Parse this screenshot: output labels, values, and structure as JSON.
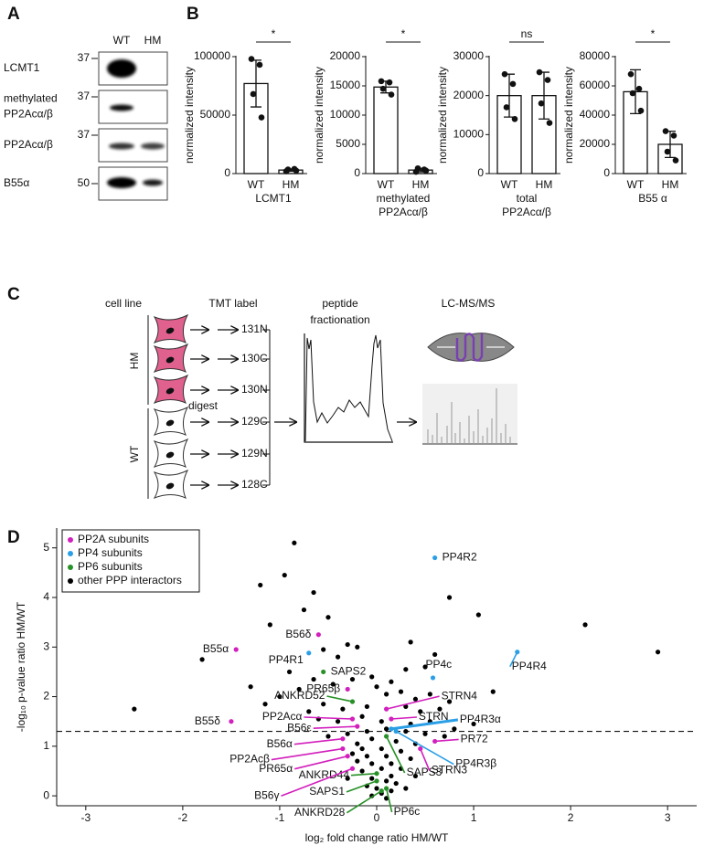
{
  "panel_labels": [
    "A",
    "B",
    "C",
    "D"
  ],
  "blot": {
    "columns": [
      "WT",
      "HM"
    ],
    "rows": [
      {
        "label": [
          "LCMT1"
        ],
        "marker": 37
      },
      {
        "label": [
          "methylated",
          "PP2Acα/β"
        ],
        "marker": 37
      },
      {
        "label": [
          "PP2Acα/β"
        ],
        "marker": 37
      },
      {
        "label": [
          "B55α"
        ],
        "marker": 50
      }
    ]
  },
  "chart_data": [
    {
      "type": "bar",
      "ylabel": "normalized intensity",
      "xlabel": [
        "LCMT1"
      ],
      "categories": [
        "WT",
        "HM"
      ],
      "values": [
        77000,
        3000
      ],
      "errors": [
        20000,
        1000
      ],
      "points": [
        [
          98000,
          93000,
          68000,
          48000
        ],
        [
          2000,
          4000,
          3500,
          2500
        ]
      ],
      "ylim": [
        0,
        100000
      ],
      "yticks": [
        0,
        50000,
        100000
      ],
      "significance": "*"
    },
    {
      "type": "bar",
      "ylabel": "normalized intensity",
      "xlabel": [
        "methylated",
        "PP2Acα/β"
      ],
      "categories": [
        "WT",
        "HM"
      ],
      "values": [
        14800,
        600
      ],
      "errors": [
        1000,
        300
      ],
      "points": [
        [
          15800,
          15600,
          14500,
          13500
        ],
        [
          300,
          700,
          900,
          500
        ]
      ],
      "ylim": [
        0,
        20000
      ],
      "yticks": [
        0,
        5000,
        10000,
        15000,
        20000
      ],
      "significance": "*"
    },
    {
      "type": "bar",
      "ylabel": "normalized intensity",
      "xlabel": [
        "total",
        "PP2Acα/β"
      ],
      "categories": [
        "WT",
        "HM"
      ],
      "values": [
        20000,
        20000
      ],
      "errors": [
        5500,
        6000
      ],
      "points": [
        [
          25500,
          23000,
          17000,
          14000
        ],
        [
          26000,
          24000,
          18000,
          13000
        ]
      ],
      "ylim": [
        0,
        30000
      ],
      "yticks": [
        0,
        10000,
        20000,
        30000
      ],
      "significance": "ns"
    },
    {
      "type": "bar",
      "ylabel": "normalized intensity",
      "xlabel": [
        "B55 α"
      ],
      "categories": [
        "WT",
        "HM"
      ],
      "values": [
        56000,
        20000
      ],
      "errors": [
        15000,
        9000
      ],
      "points": [
        [
          68000,
          58000,
          55000,
          43000
        ],
        [
          29000,
          26000,
          15000,
          9000
        ]
      ],
      "ylim": [
        0,
        80000
      ],
      "yticks": [
        0,
        20000,
        40000,
        60000,
        80000
      ],
      "significance": "*"
    },
    {
      "type": "scatter",
      "xlabel": "log₂ fold change ratio HM/WT",
      "ylabel": "-log₁₀ p-value ratio HM/WT",
      "xlim": [
        -3.3,
        3.3
      ],
      "ylim": [
        -0.2,
        5.4
      ],
      "xticks": [
        -3,
        -2,
        -1,
        0,
        1,
        2,
        3
      ],
      "yticks": [
        0,
        1,
        2,
        3,
        4,
        5
      ],
      "threshold": 1.3,
      "legend": "upper left",
      "series": [
        {
          "name": "PP2A subunits",
          "color": "#d21fbd",
          "labels": [
            "B55α",
            "B56δ",
            "PR65β",
            "B55δ",
            "PP2Acα",
            "B56ε",
            "B56α",
            "PP2Acβ",
            "PR65α",
            "B56γ",
            "STRN4",
            "STRN",
            "PR72",
            "STRN3"
          ],
          "x": [
            -1.45,
            -0.6,
            -0.3,
            -1.5,
            -0.25,
            -0.2,
            -0.35,
            -0.35,
            -0.3,
            -0.25,
            0.1,
            0.15,
            0.6,
            0.45
          ],
          "y": [
            2.95,
            3.25,
            2.15,
            1.5,
            1.55,
            1.4,
            1.15,
            0.95,
            0.8,
            0.55,
            1.75,
            1.55,
            1.1,
            0.95
          ]
        },
        {
          "name": "PP4 subunits",
          "color": "#2b9fe6",
          "labels": [
            "PP4R2",
            "PP4R1",
            "PP4R4",
            "PP4c",
            "PP4R3α",
            "PP4R3β"
          ],
          "x": [
            0.6,
            -0.7,
            1.45,
            0.58,
            0.15,
            0.2
          ],
          "y": [
            4.8,
            2.88,
            2.9,
            2.38,
            1.35,
            1.3
          ]
        },
        {
          "name": "PP6 subunits",
          "color": "#279127",
          "labels": [
            "SAPS2",
            "ANKRD52",
            "ANKRD44",
            "SAPS1",
            "ANKRD28",
            "PP6c",
            "SAPS3"
          ],
          "x": [
            -0.55,
            -0.25,
            0.0,
            0.0,
            0.05,
            0.1,
            0.1
          ],
          "y": [
            2.5,
            1.9,
            0.45,
            0.3,
            0.1,
            0.15,
            1.2
          ]
        },
        {
          "name": "other PPP interactors",
          "color": "#000000",
          "x": [
            -0.85,
            -0.95,
            -1.2,
            -0.65,
            -0.75,
            -1.1,
            -0.5,
            -1.8,
            -2.5,
            2.15,
            2.9,
            1.05,
            0.75,
            0.35,
            -0.3,
            -0.2,
            -0.55,
            -0.4,
            -0.05,
            0.15,
            0.3,
            0.5,
            0.6,
            0.1,
            0.4,
            0.75,
            1.0,
            -1.0,
            -1.15,
            -0.8,
            -0.65,
            -0.9,
            -0.45,
            -0.25,
            0.0,
            0.25,
            0.55,
            0.65,
            0.45,
            0.3,
            -0.1,
            -0.35,
            -0.55,
            -0.7,
            -0.6,
            -0.4,
            -0.15,
            0.05,
            0.35,
            0.55,
            0.8,
            0.7,
            0.5,
            0.3,
            0.1,
            -0.1,
            -0.3,
            -0.5,
            -0.05,
            0.2,
            0.4,
            -0.2,
            -0.15,
            0.05,
            0.25,
            0.35,
            -0.25,
            -0.1,
            0.1,
            0.15,
            -0.05,
            -0.2,
            0.25,
            -0.15,
            0.05,
            0.15,
            -0.05,
            0.1,
            0.2,
            -0.1,
            0.0,
            0.15,
            0.05,
            -0.05,
            0.1,
            0.3,
            -0.3,
            0.4,
            1.2,
            -1.3
          ],
          "y": [
            5.1,
            4.45,
            4.25,
            4.1,
            3.75,
            3.45,
            3.6,
            2.75,
            1.75,
            3.45,
            2.9,
            3.65,
            4.0,
            3.1,
            3.05,
            3.0,
            2.95,
            2.8,
            2.4,
            2.3,
            2.55,
            2.6,
            2.85,
            2.05,
            1.95,
            1.9,
            1.45,
            2.0,
            1.85,
            2.15,
            2.35,
            2.5,
            2.25,
            2.35,
            2.2,
            2.1,
            2.05,
            1.75,
            1.7,
            1.8,
            1.8,
            1.75,
            1.85,
            1.7,
            1.55,
            1.5,
            1.6,
            1.5,
            1.45,
            1.5,
            1.35,
            1.2,
            1.25,
            1.3,
            1.35,
            1.3,
            1.25,
            1.2,
            1.15,
            1.1,
            1.05,
            1.05,
            0.95,
            0.95,
            0.9,
            0.75,
            0.85,
            0.8,
            0.8,
            0.65,
            0.65,
            0.7,
            0.55,
            0.5,
            0.55,
            0.4,
            0.35,
            0.3,
            0.25,
            0.2,
            0.15,
            0.1,
            0.05,
            0.0,
            -0.05,
            0.15,
            0.35,
            0.4,
            2.1,
            2.2
          ]
        }
      ]
    }
  ],
  "workflow": {
    "headers": [
      [
        "cell line"
      ],
      [
        "TMT label"
      ],
      [
        "peptide",
        "fractionation"
      ],
      [
        "LC-MS/MS"
      ]
    ],
    "groups": [
      "HM",
      "WT"
    ],
    "step": "digest",
    "labels": [
      "131N",
      "130C",
      "130N",
      "129C",
      "129N",
      "128C"
    ]
  }
}
